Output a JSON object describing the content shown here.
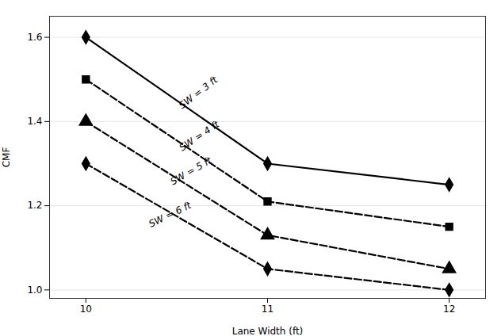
{
  "chart_data": {
    "type": "line",
    "x": [
      10,
      11,
      12
    ],
    "series": [
      {
        "values": [
          1.6,
          1.3,
          1.25
        ],
        "color": "#000000",
        "marker": "diamond",
        "line_style": "solid"
      },
      {
        "values": [
          1.5,
          1.21,
          1.15
        ],
        "color": "#000000",
        "marker": "square",
        "line_style": "dashed"
      },
      {
        "values": [
          1.4,
          1.13,
          1.05
        ],
        "color": "#000000",
        "marker": "triangle",
        "line_style": "dashed"
      },
      {
        "values": [
          1.3,
          1.05,
          1.0
        ],
        "color": "#000000",
        "marker": "diamond",
        "line_style": "dashed"
      }
    ],
    "annotations": [
      {
        "text": "SW = 3 ft",
        "x": 10.52,
        "y": 1.435
      },
      {
        "text": "SW = 4 ft",
        "x": 10.52,
        "y": 1.335
      },
      {
        "text": "SW = 5 ft",
        "x": 10.47,
        "y": 1.255
      },
      {
        "text": "SW = 6 ft",
        "x": 10.35,
        "y": 1.155
      }
    ],
    "xlabel": "Lane Width (ft)",
    "ylabel": "CMF",
    "xlim": [
      9.8,
      12.2
    ],
    "ylim": [
      0.98,
      1.65
    ],
    "xticks": [
      10,
      11,
      12
    ],
    "yticks": [
      {
        "value": 1.0,
        "label": "1.0"
      },
      1.2,
      1.4,
      1.6
    ],
    "grid": "y"
  }
}
